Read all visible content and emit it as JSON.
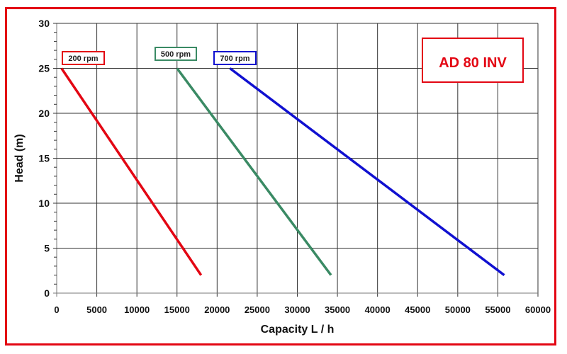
{
  "chart_data": {
    "type": "line",
    "title": "AD 80 INV",
    "xlabel": "Capacity  L / h",
    "ylabel": "Head (m)",
    "xlim": [
      0,
      60000
    ],
    "ylim": [
      0,
      30
    ],
    "xticks": [
      "0",
      "5000",
      "10000",
      "15000",
      "20000",
      "25000",
      "30000",
      "35000",
      "40000",
      "45000",
      "50000",
      "55000",
      "60000"
    ],
    "yticks": [
      "0",
      "5",
      "10",
      "15",
      "20",
      "25",
      "30"
    ],
    "grid": true,
    "legend": "inline labels",
    "series": [
      {
        "name": "200 rpm",
        "color": "#e30613",
        "x": [
          600,
          18000
        ],
        "y": [
          25,
          2
        ]
      },
      {
        "name": "500 rpm",
        "color": "#3a8a64",
        "x": [
          15000,
          34200
        ],
        "y": [
          25,
          2
        ]
      },
      {
        "name": "700 rpm",
        "color": "#1010d0",
        "x": [
          21600,
          55800
        ],
        "y": [
          25,
          2
        ]
      }
    ],
    "frame_color": "#e30613"
  }
}
